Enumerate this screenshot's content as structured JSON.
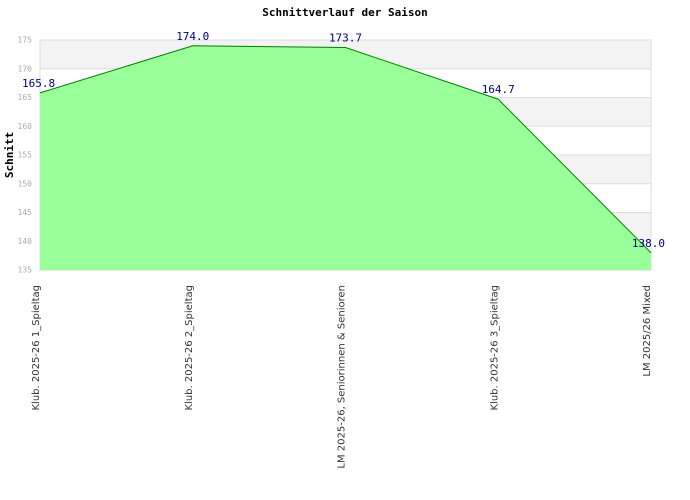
{
  "chart_data": {
    "type": "area",
    "title": "Schnittverlauf der Saison",
    "y_label": "Schnitt",
    "categories": [
      "Klub. 2025-26  1_Spieltag",
      "Klub. 2025-26  2_Spieltag",
      "LM 2025-26, Seniorinnen & Senioren",
      "Klub. 2025-26  3_Spieltag",
      "LM 2025/26 Mixed"
    ],
    "values": [
      165.8,
      174.0,
      173.7,
      164.7,
      138.0
    ],
    "value_labels": [
      "165.8",
      "174.0",
      "173.7",
      "164.7",
      "138.0"
    ],
    "color": "#99ff99",
    "line_color": "#008000",
    "ylim": [
      135,
      175
    ],
    "yticks": [
      135,
      140,
      145,
      150,
      155,
      160,
      165,
      170,
      175
    ],
    "grid": true
  }
}
